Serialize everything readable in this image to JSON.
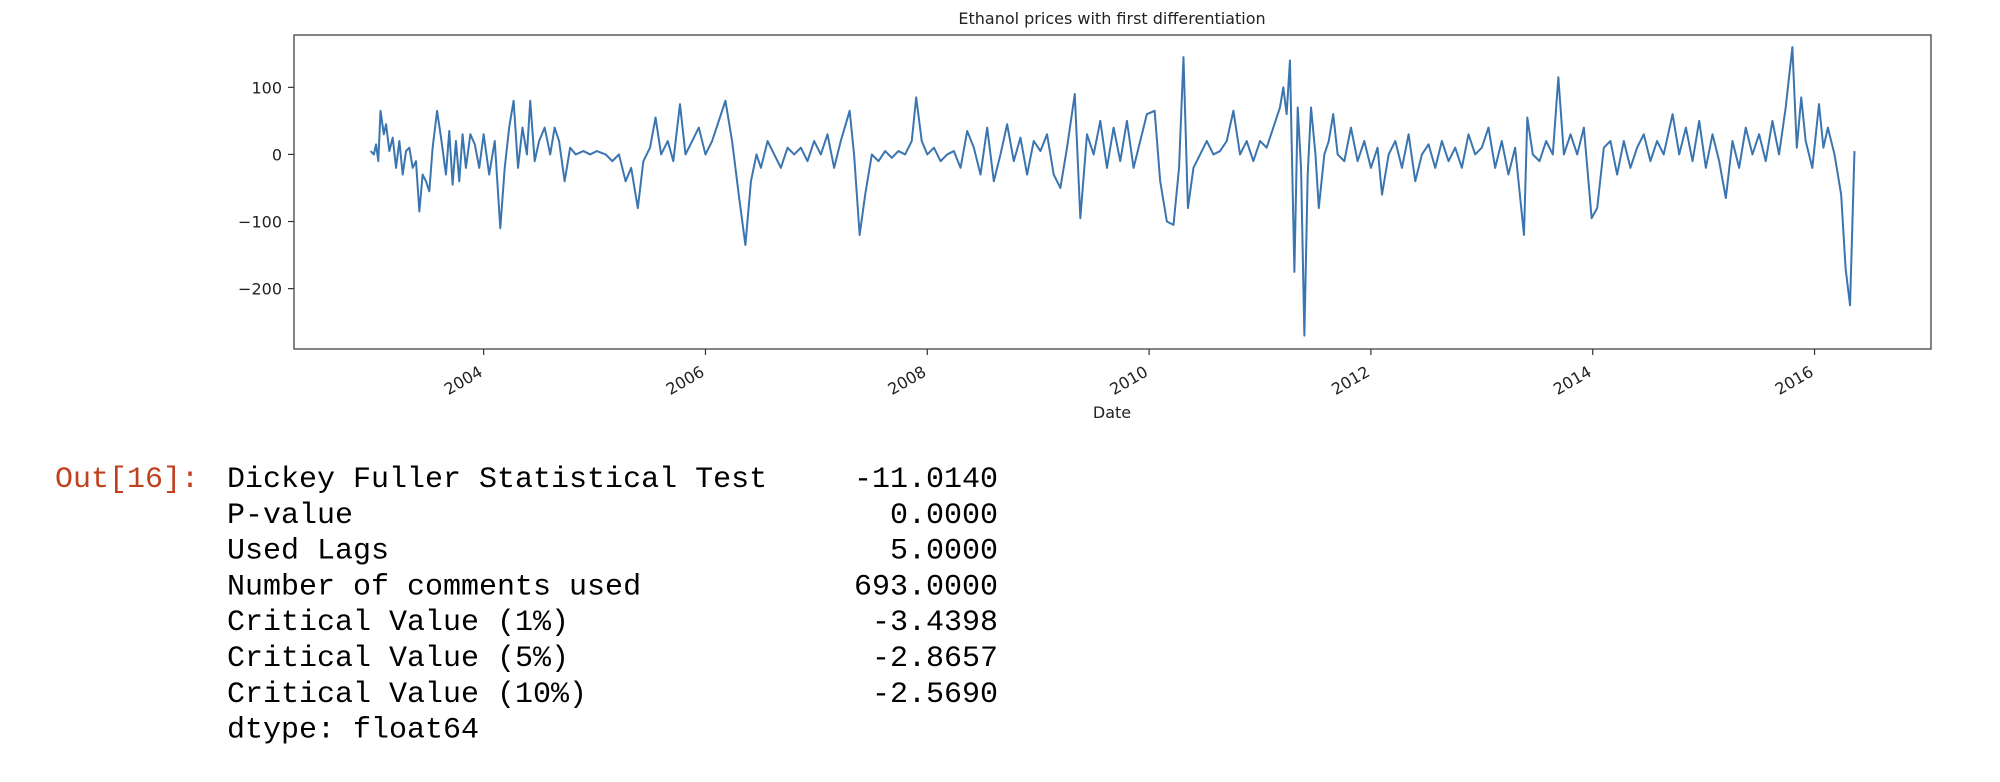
{
  "chart_data": {
    "type": "line",
    "title": "Ethanol prices with first differentiation",
    "x_label": "Date",
    "x": [
      2002.98,
      2003.01,
      2003.03,
      2003.05,
      2003.07,
      2003.1,
      2003.12,
      2003.15,
      2003.18,
      2003.21,
      2003.24,
      2003.27,
      2003.3,
      2003.33,
      2003.36,
      2003.39,
      2003.42,
      2003.45,
      2003.48,
      2003.51,
      2003.54,
      2003.58,
      2003.62,
      2003.66,
      2003.69,
      2003.72,
      2003.75,
      2003.78,
      2003.81,
      2003.84,
      2003.88,
      2003.92,
      2003.96,
      2004.0,
      2004.05,
      2004.1,
      2004.15,
      2004.19,
      2004.23,
      2004.27,
      2004.31,
      2004.35,
      2004.39,
      2004.42,
      2004.46,
      2004.5,
      2004.55,
      2004.6,
      2004.64,
      2004.68,
      2004.73,
      2004.78,
      2004.83,
      2004.9,
      2004.96,
      2005.02,
      2005.1,
      2005.16,
      2005.22,
      2005.28,
      2005.33,
      2005.39,
      2005.44,
      2005.5,
      2005.55,
      2005.6,
      2005.66,
      2005.71,
      2005.77,
      2005.82,
      2005.88,
      2005.94,
      2006.0,
      2006.06,
      2006.12,
      2006.18,
      2006.24,
      2006.3,
      2006.36,
      2006.41,
      2006.46,
      2006.5,
      2006.56,
      2006.62,
      2006.68,
      2006.74,
      2006.8,
      2006.86,
      2006.92,
      2006.98,
      2007.04,
      2007.1,
      2007.16,
      2007.22,
      2007.3,
      2007.34,
      2007.39,
      2007.44,
      2007.5,
      2007.56,
      2007.62,
      2007.68,
      2007.74,
      2007.8,
      2007.86,
      2007.9,
      2007.95,
      2008.0,
      2008.06,
      2008.12,
      2008.18,
      2008.24,
      2008.3,
      2008.36,
      2008.42,
      2008.48,
      2008.54,
      2008.6,
      2008.66,
      2008.72,
      2008.78,
      2008.84,
      2008.9,
      2008.96,
      2009.02,
      2009.08,
      2009.14,
      2009.2,
      2009.26,
      2009.33,
      2009.38,
      2009.44,
      2009.5,
      2009.56,
      2009.62,
      2009.68,
      2009.74,
      2009.8,
      2009.86,
      2009.92,
      2009.98,
      2010.05,
      2010.1,
      2010.16,
      2010.22,
      2010.27,
      2010.31,
      2010.35,
      2010.4,
      2010.46,
      2010.52,
      2010.58,
      2010.64,
      2010.7,
      2010.76,
      2010.82,
      2010.88,
      2010.94,
      2011.0,
      2011.06,
      2011.12,
      2011.18,
      2011.21,
      2011.24,
      2011.27,
      2011.31,
      2011.34,
      2011.37,
      2011.4,
      2011.43,
      2011.46,
      2011.5,
      2011.53,
      2011.58,
      2011.62,
      2011.66,
      2011.7,
      2011.76,
      2011.82,
      2011.88,
      2011.94,
      2012.0,
      2012.06,
      2012.1,
      2012.16,
      2012.22,
      2012.28,
      2012.34,
      2012.4,
      2012.46,
      2012.52,
      2012.58,
      2012.64,
      2012.7,
      2012.76,
      2012.82,
      2012.88,
      2012.94,
      2013.0,
      2013.06,
      2013.12,
      2013.18,
      2013.24,
      2013.3,
      2013.38,
      2013.41,
      2013.46,
      2013.52,
      2013.58,
      2013.64,
      2013.69,
      2013.74,
      2013.8,
      2013.86,
      2013.92,
      2013.99,
      2014.04,
      2014.1,
      2014.16,
      2014.22,
      2014.28,
      2014.34,
      2014.4,
      2014.46,
      2014.52,
      2014.58,
      2014.64,
      2014.72,
      2014.78,
      2014.84,
      2014.9,
      2014.96,
      2015.02,
      2015.08,
      2015.14,
      2015.2,
      2015.26,
      2015.32,
      2015.38,
      2015.44,
      2015.5,
      2015.56,
      2015.62,
      2015.68,
      2015.74,
      2015.8,
      2015.84,
      2015.88,
      2015.92,
      2015.98,
      2016.04,
      2016.08,
      2016.12,
      2016.18,
      2016.24,
      2016.28,
      2016.32,
      2016.36
    ],
    "values": [
      5,
      0,
      15,
      -10,
      65,
      30,
      45,
      5,
      25,
      -20,
      20,
      -30,
      5,
      10,
      -20,
      -10,
      -85,
      -30,
      -40,
      -55,
      10,
      65,
      20,
      -30,
      35,
      -45,
      20,
      -40,
      30,
      -20,
      30,
      15,
      -20,
      30,
      -30,
      20,
      -110,
      -20,
      40,
      80,
      -20,
      40,
      0,
      80,
      -10,
      20,
      40,
      0,
      40,
      20,
      -40,
      10,
      0,
      5,
      0,
      5,
      0,
      -10,
      0,
      -40,
      -20,
      -80,
      -10,
      10,
      55,
      0,
      20,
      -10,
      75,
      0,
      20,
      40,
      0,
      20,
      50,
      80,
      20,
      -60,
      -135,
      -40,
      0,
      -20,
      20,
      0,
      -20,
      10,
      0,
      10,
      -10,
      20,
      0,
      30,
      -20,
      20,
      65,
      0,
      -120,
      -60,
      0,
      -10,
      5,
      -5,
      5,
      0,
      20,
      85,
      20,
      0,
      10,
      -10,
      0,
      5,
      -20,
      35,
      10,
      -30,
      40,
      -40,
      0,
      45,
      -10,
      25,
      -30,
      20,
      5,
      30,
      -30,
      -50,
      10,
      90,
      -95,
      30,
      0,
      50,
      -20,
      40,
      -10,
      50,
      -20,
      20,
      60,
      65,
      -40,
      -100,
      -105,
      -20,
      145,
      -80,
      -20,
      0,
      20,
      0,
      5,
      20,
      65,
      0,
      20,
      -10,
      20,
      10,
      40,
      70,
      100,
      60,
      140,
      -175,
      70,
      -20,
      -270,
      -30,
      70,
      0,
      -80,
      0,
      20,
      60,
      0,
      -10,
      40,
      -10,
      20,
      -20,
      10,
      -60,
      0,
      20,
      -20,
      30,
      -40,
      0,
      15,
      -20,
      20,
      -10,
      10,
      -20,
      30,
      0,
      10,
      40,
      -20,
      20,
      -30,
      10,
      -120,
      55,
      0,
      -10,
      20,
      0,
      115,
      0,
      30,
      0,
      40,
      -95,
      -80,
      10,
      20,
      -30,
      20,
      -20,
      10,
      30,
      -10,
      20,
      0,
      60,
      0,
      40,
      -10,
      50,
      -20,
      30,
      -10,
      -65,
      20,
      -20,
      40,
      0,
      30,
      -10,
      50,
      0,
      70,
      160,
      10,
      85,
      20,
      -20,
      75,
      10,
      40,
      0,
      -60,
      -170,
      -225,
      5
    ],
    "color": "#3b75af",
    "xlim": [
      2002.29,
      2017.05
    ],
    "xticks": [
      2004,
      2006,
      2008,
      2010,
      2012,
      2014,
      2016
    ],
    "ylim": [
      -290,
      178
    ],
    "yticks": [
      {
        "value": -200,
        "label": "−200"
      },
      {
        "value": -100,
        "label": "−100"
      },
      0,
      100
    ]
  },
  "output": {
    "prompt": "Out[16]:",
    "rows": [
      [
        "Dickey Fuller Statistical Test",
        "-11.0140"
      ],
      [
        "P-value",
        "0.0000"
      ],
      [
        "Used Lags",
        "5.0000"
      ],
      [
        "Number of comments used",
        "693.0000"
      ],
      [
        "Critical Value (1%)",
        "-3.4398"
      ],
      [
        "Critical Value (5%)",
        "-2.8657"
      ],
      [
        "Critical Value (10%)",
        "-2.5690"
      ]
    ],
    "dtype": "dtype: float64"
  }
}
